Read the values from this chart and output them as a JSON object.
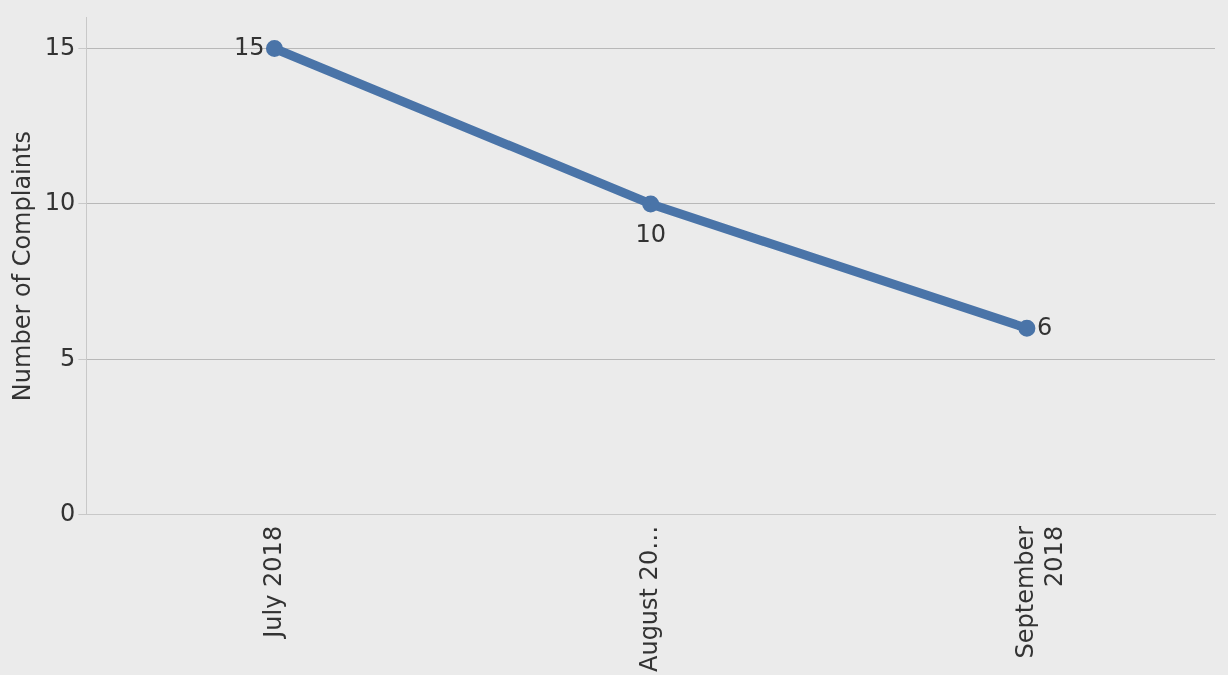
{
  "chart_data": {
    "type": "line",
    "ylabel": "Number of Complaints",
    "categories": [
      "July 2018",
      "August 20…",
      "September 2018"
    ],
    "series": [
      {
        "color": "#4a74a8",
        "values": [
          15,
          10,
          6
        ]
      }
    ],
    "ylim": [
      0,
      16
    ],
    "yticks": [
      0,
      5,
      10,
      15
    ],
    "grid": "y",
    "legend": false,
    "marker": "circle",
    "line_style": "solid",
    "data_labels": true
  }
}
